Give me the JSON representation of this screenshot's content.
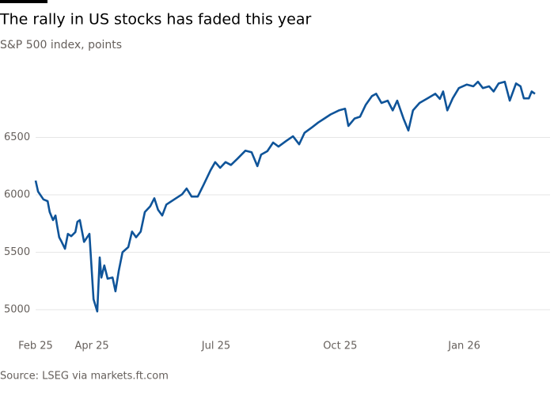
{
  "chart_data": {
    "type": "line",
    "title": "The rally in US stocks has faded this year",
    "subtitle": "S&P 500 index, points",
    "source": "Source: LSEG via markets.ft.com",
    "x": [
      2.64,
      2.7,
      2.83,
      2.93,
      2.98,
      3.06,
      3.12,
      3.16,
      3.21,
      3.27,
      3.35,
      3.42,
      3.5,
      3.6,
      3.65,
      3.71,
      3.81,
      3.94,
      4.04,
      4.13,
      4.19,
      4.23,
      4.3,
      4.38,
      4.5,
      4.57,
      4.65,
      4.74,
      4.88,
      4.97,
      5.07,
      5.18,
      5.28,
      5.41,
      5.51,
      5.6,
      5.7,
      5.8,
      5.99,
      6.18,
      6.29,
      6.41,
      6.56,
      6.71,
      6.87,
      6.98,
      7.1,
      7.23,
      7.36,
      7.52,
      7.71,
      7.86,
      8.0,
      8.09,
      8.24,
      8.38,
      8.51,
      8.7,
      8.86,
      9.01,
      9.14,
      9.33,
      9.47,
      9.62,
      9.77,
      9.97,
      10.12,
      10.2,
      10.35,
      10.48,
      10.62,
      10.77,
      10.87,
      11.0,
      11.15,
      11.27,
      11.38,
      11.53,
      11.65,
      11.76,
      11.92,
      12.11,
      12.3,
      12.41,
      12.49,
      12.59,
      12.72,
      12.87,
      13.06,
      13.22,
      13.33,
      13.45,
      13.6,
      13.71,
      13.83,
      13.98,
      14.1,
      14.25,
      14.36,
      14.44,
      14.56,
      14.63,
      14.71
    ],
    "series": [
      {
        "name": "S&P 500",
        "color": "#0f5499",
        "values": [
          6124,
          6028,
          5960,
          5945,
          5850,
          5780,
          5820,
          5730,
          5630,
          5590,
          5530,
          5660,
          5640,
          5675,
          5765,
          5780,
          5590,
          5660,
          5090,
          4985,
          5455,
          5280,
          5385,
          5270,
          5280,
          5160,
          5340,
          5500,
          5545,
          5680,
          5630,
          5680,
          5850,
          5900,
          5970,
          5870,
          5820,
          5915,
          5960,
          6005,
          6055,
          5985,
          5985,
          6095,
          6215,
          6285,
          6235,
          6285,
          6260,
          6315,
          6385,
          6370,
          6250,
          6350,
          6380,
          6455,
          6420,
          6470,
          6510,
          6440,
          6540,
          6590,
          6630,
          6665,
          6700,
          6735,
          6750,
          6600,
          6665,
          6680,
          6785,
          6860,
          6880,
          6800,
          6820,
          6735,
          6820,
          6665,
          6560,
          6735,
          6800,
          6840,
          6880,
          6835,
          6900,
          6735,
          6840,
          6930,
          6960,
          6945,
          6985,
          6930,
          6945,
          6900,
          6970,
          6985,
          6820,
          6970,
          6945,
          6840,
          6840,
          6900,
          6880
        ]
      }
    ],
    "xlim": [
      2.64,
      14.71
    ],
    "xticks": [
      {
        "value": 2.64,
        "label": "Feb 25"
      },
      {
        "value": 4,
        "label": "Apr 25"
      },
      {
        "value": 7,
        "label": "Jul 25"
      },
      {
        "value": 10,
        "label": "Oct 25"
      },
      {
        "value": 13,
        "label": "Jan 26"
      }
    ],
    "ylim": [
      5000,
      7000
    ],
    "yticks": [
      5000,
      5500,
      6000,
      6500
    ],
    "grid": true
  }
}
